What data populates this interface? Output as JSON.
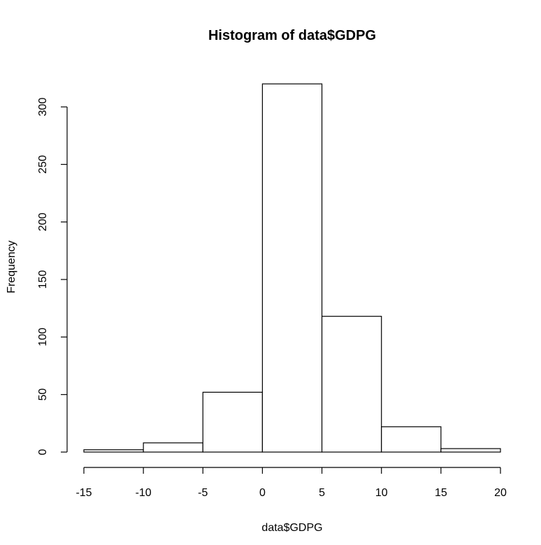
{
  "chart_data": {
    "type": "bar",
    "title": "Histogram of data$GDPG",
    "xlabel": "data$GDPG",
    "ylabel": "Frequency",
    "bins": [
      {
        "from": -15,
        "to": -10,
        "count": 2
      },
      {
        "from": -10,
        "to": -5,
        "count": 8
      },
      {
        "from": -5,
        "to": 0,
        "count": 52
      },
      {
        "from": 0,
        "to": 5,
        "count": 320
      },
      {
        "from": 5,
        "to": 10,
        "count": 118
      },
      {
        "from": 10,
        "to": 15,
        "count": 22
      },
      {
        "from": 15,
        "to": 20,
        "count": 3
      }
    ],
    "xlim": [
      -15,
      20
    ],
    "ylim": [
      0,
      300
    ],
    "x_ticks": [
      -15,
      -10,
      -5,
      0,
      5,
      10,
      15,
      20
    ],
    "y_ticks": [
      0,
      50,
      100,
      150,
      200,
      250,
      300
    ],
    "grid": false,
    "colors": {
      "bar_fill": "#ffffff",
      "bar_stroke": "#000000"
    }
  }
}
